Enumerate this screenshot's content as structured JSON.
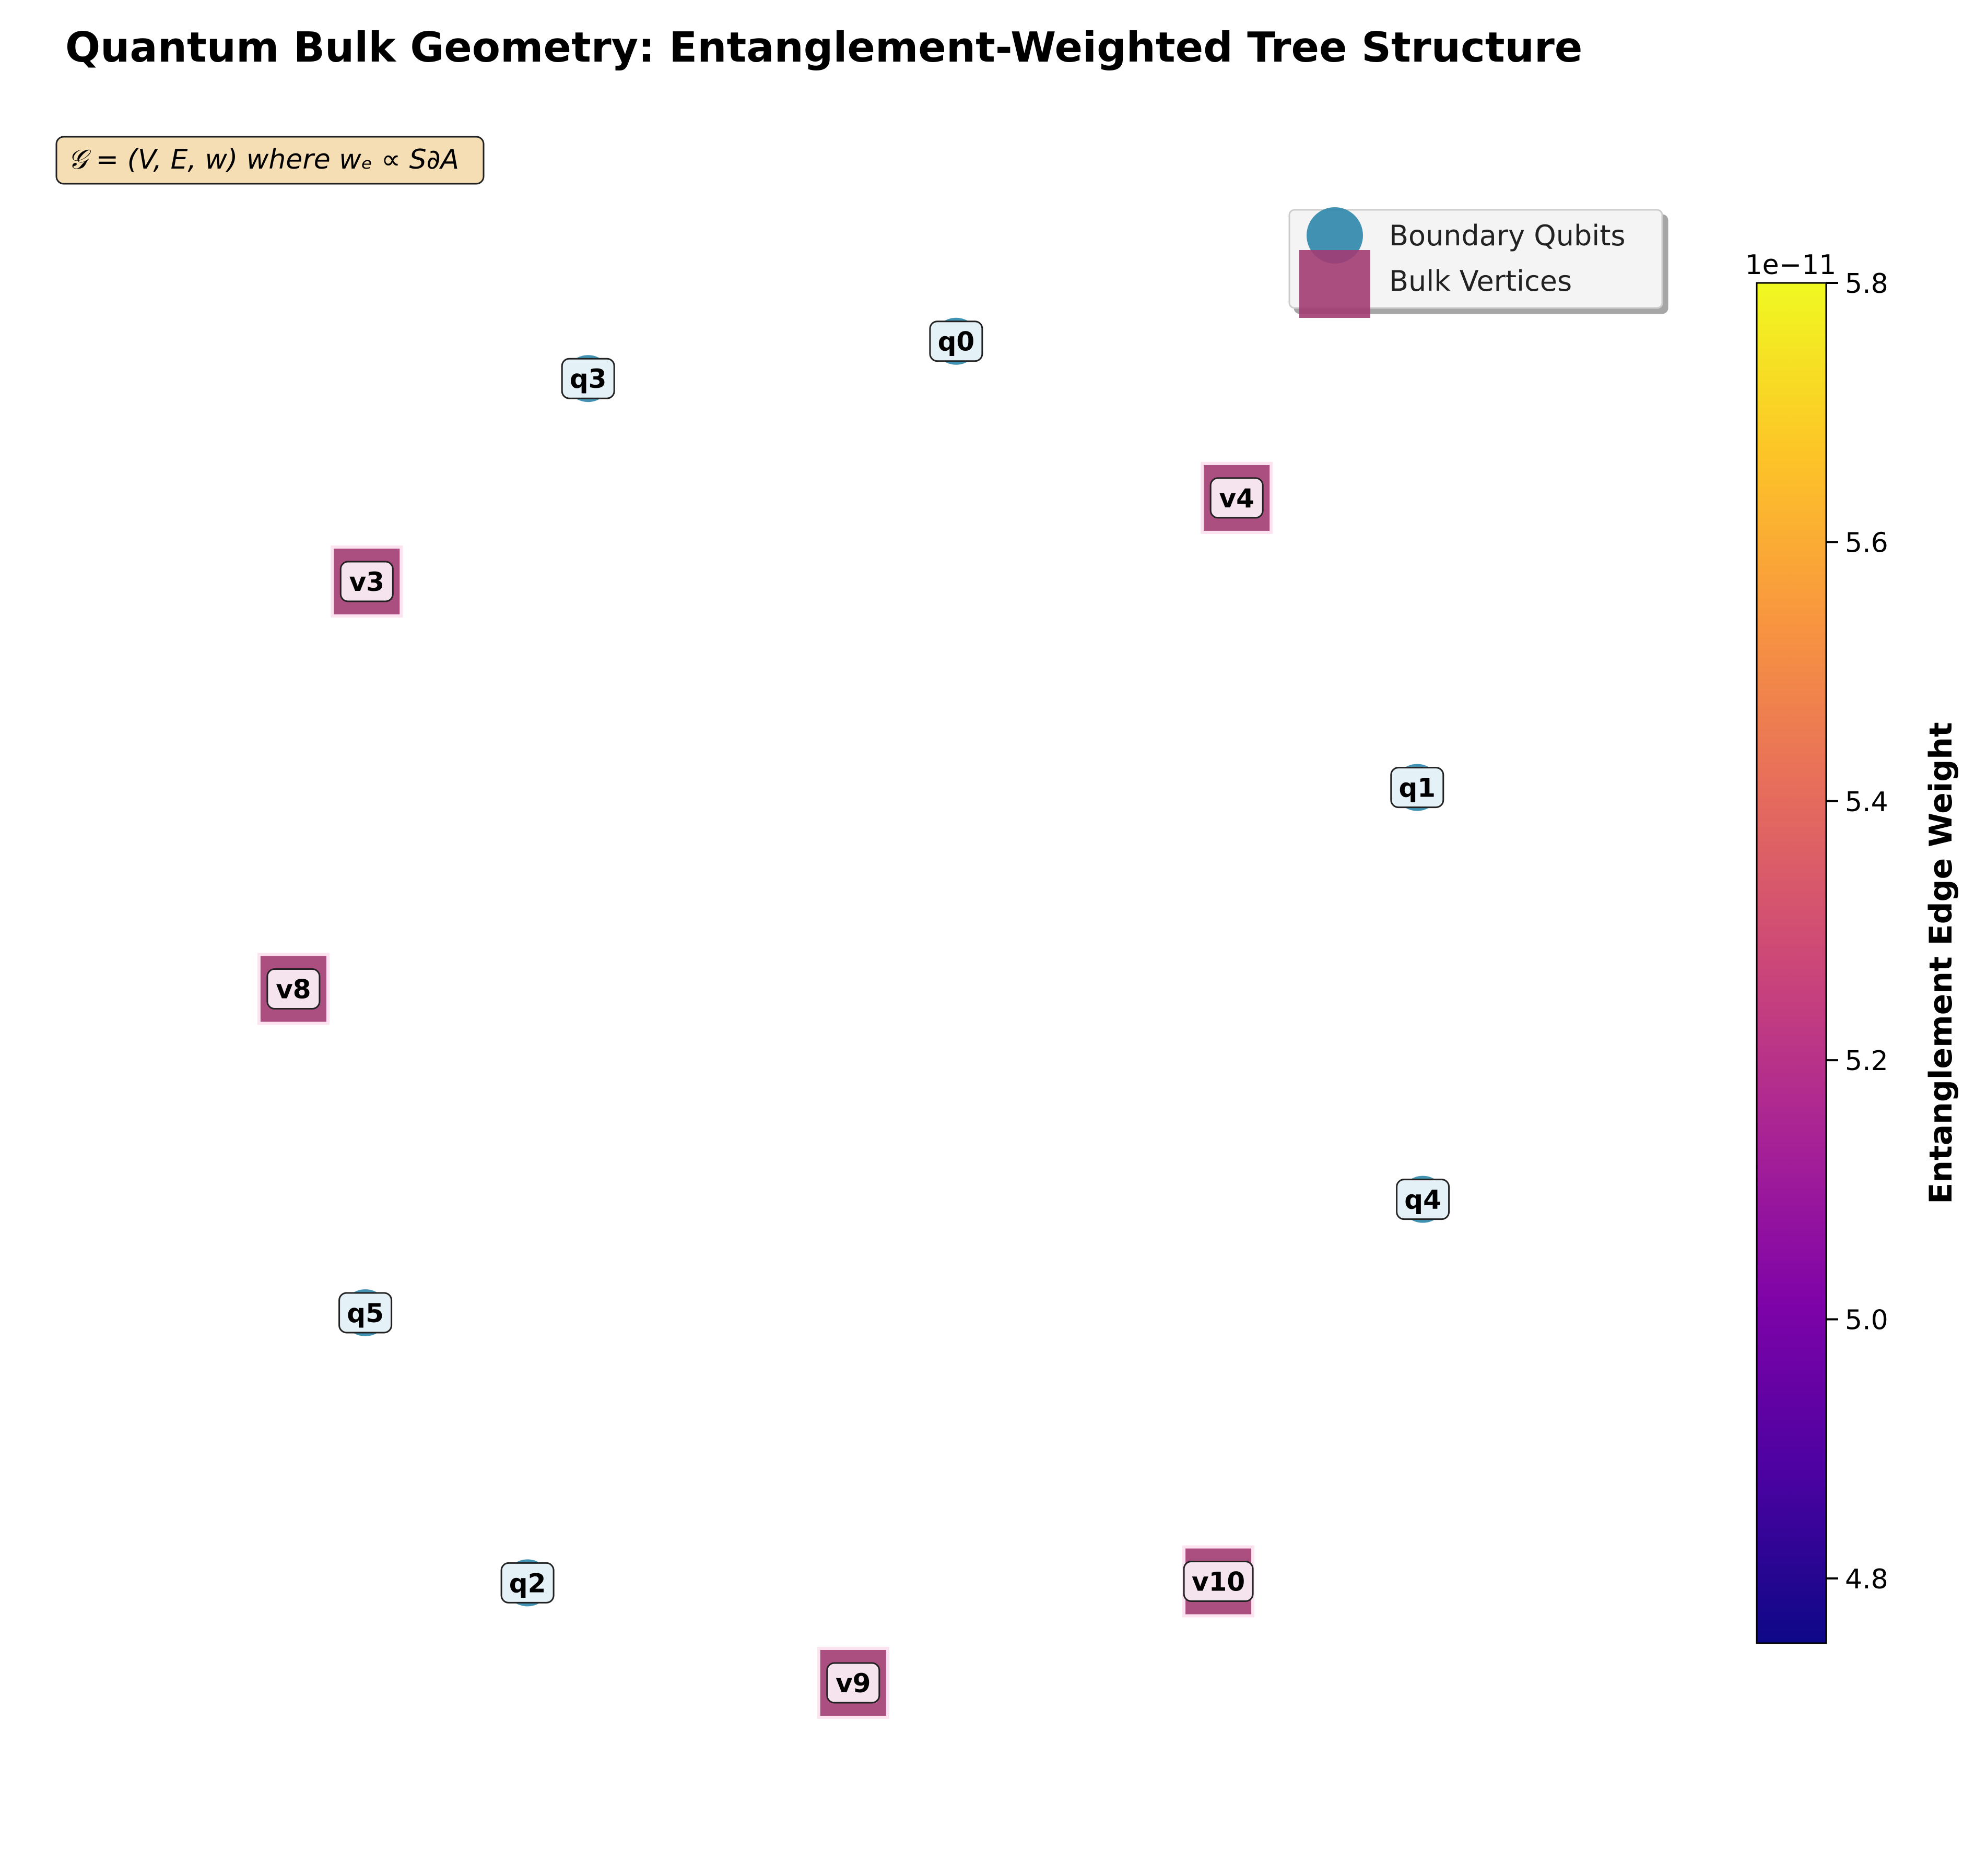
{
  "chart_data": {
    "type": "scatter",
    "title": "Quantum Bulk Geometry: Entanglement-Weighted Tree Structure",
    "annotation": "𝒢 = (V, E, w) where wₑ ∝ S∂A",
    "annotation_box_color": "#f5deb3",
    "legend": {
      "location": "upper right",
      "entries": [
        {
          "label": "Boundary Qubits",
          "marker": "circle",
          "color": "#2e86ab"
        },
        {
          "label": "Bulk Vertices",
          "marker": "square",
          "color": "#a23b72"
        }
      ]
    },
    "colorbar": {
      "label": "Entanglement Edge Weight",
      "cmap": "plasma",
      "range": [
        4.75e-11,
        5.8e-11
      ],
      "offset_label": "1e−11",
      "ticks": [
        {
          "value": 4.8,
          "label": "4.8"
        },
        {
          "value": 5.0,
          "label": "5.0"
        },
        {
          "value": 5.2,
          "label": "5.2"
        },
        {
          "value": 5.4,
          "label": "5.4"
        },
        {
          "value": 5.6,
          "label": "5.6"
        },
        {
          "value": 5.8,
          "label": "5.8"
        }
      ]
    },
    "xlim": [
      0,
      1
    ],
    "ylim": [
      0,
      1
    ],
    "axis_visible": false,
    "series": [
      {
        "name": "Boundary Qubits",
        "marker": "circle",
        "color": "#2e86ab",
        "points": [
          {
            "label": "q0",
            "x": 0.567,
            "y": 0.913
          },
          {
            "label": "q1",
            "x": 0.894,
            "y": 0.614
          },
          {
            "label": "q2",
            "x": 0.263,
            "y": 0.081
          },
          {
            "label": "q3",
            "x": 0.306,
            "y": 0.888
          },
          {
            "label": "q4",
            "x": 0.898,
            "y": 0.338
          },
          {
            "label": "q5",
            "x": 0.148,
            "y": 0.262
          }
        ]
      },
      {
        "name": "Bulk Vertices",
        "marker": "square",
        "color": "#a23b72",
        "points": [
          {
            "label": "v3",
            "x": 0.149,
            "y": 0.752
          },
          {
            "label": "v4",
            "x": 0.766,
            "y": 0.808
          },
          {
            "label": "v8",
            "x": 0.097,
            "y": 0.479
          },
          {
            "label": "v9",
            "x": 0.494,
            "y": 0.014
          },
          {
            "label": "v10",
            "x": 0.753,
            "y": 0.082
          }
        ]
      }
    ]
  }
}
